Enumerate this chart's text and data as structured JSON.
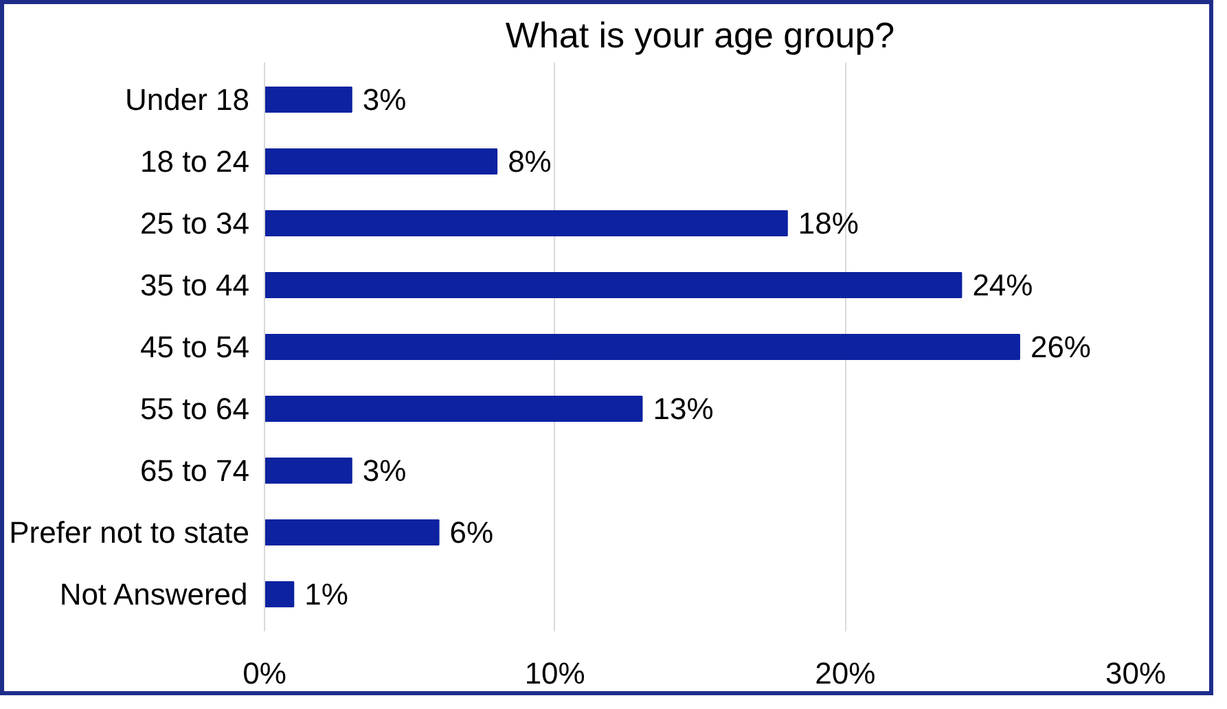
{
  "chart_data": {
    "type": "bar",
    "orientation": "horizontal",
    "title": "What is your age group?",
    "categories": [
      "Under 18",
      "18 to 24",
      "25 to 34",
      "35 to 44",
      "45 to 54",
      "55 to 64",
      "65 to 74",
      "Prefer not to state",
      "Not Answered"
    ],
    "values": [
      3,
      8,
      18,
      24,
      26,
      13,
      3,
      6,
      1
    ],
    "value_labels": [
      "3%",
      "8%",
      "18%",
      "24%",
      "26%",
      "13%",
      "3%",
      "6%",
      "1%"
    ],
    "color": "#0c22a0",
    "xlim": [
      0,
      30
    ],
    "xticks": [
      {
        "value": 0,
        "label": "0%"
      },
      {
        "value": 10,
        "label": "10%"
      },
      {
        "value": 20,
        "label": "20%"
      },
      {
        "value": 30,
        "label": "30%"
      }
    ],
    "grid": "x"
  }
}
